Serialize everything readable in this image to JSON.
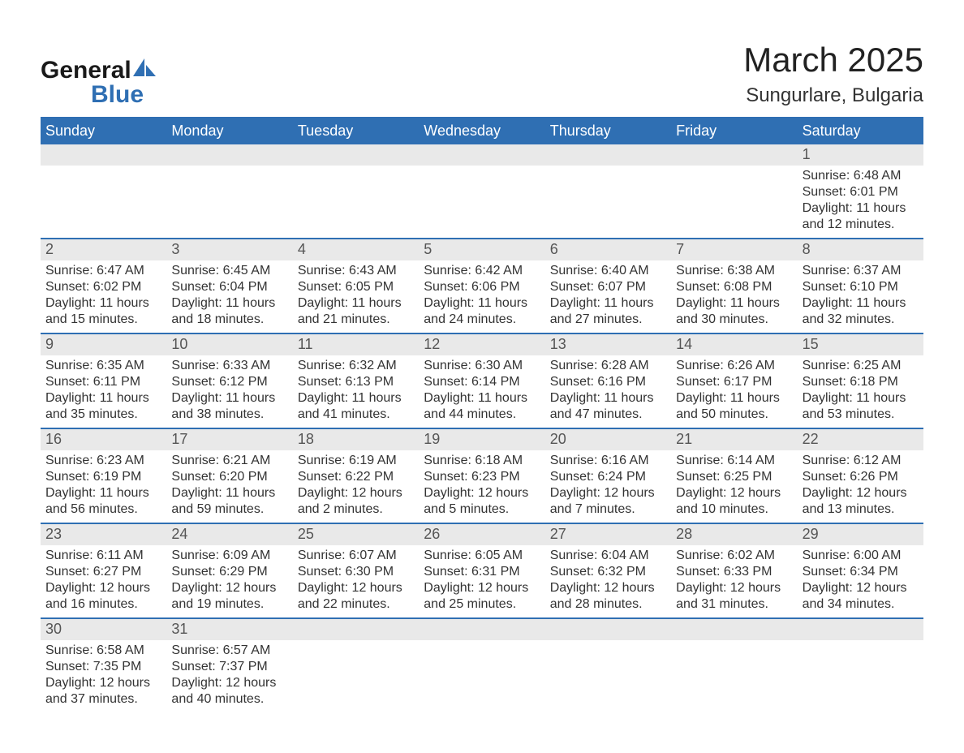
{
  "brand": {
    "word1": "General",
    "word2": "Blue",
    "text_color": "#1a1a1a",
    "blue": "#2f6fb3"
  },
  "title": "March 2025",
  "subtitle": "Sungurlare, Bulgaria",
  "columns": [
    "Sunday",
    "Monday",
    "Tuesday",
    "Wednesday",
    "Thursday",
    "Friday",
    "Saturday"
  ],
  "colors": {
    "header_bg": "#2f6fb3",
    "header_text": "#ffffff",
    "daynum_bg": "#e9e9e9",
    "daynum_text": "#555555",
    "body_text": "#333333",
    "rule": "#2f6fb3",
    "page_bg": "#ffffff"
  },
  "fontsize": {
    "title": 42,
    "subtitle": 24,
    "col_header": 18,
    "daynum": 18,
    "body": 16
  },
  "weeks": [
    [
      null,
      null,
      null,
      null,
      null,
      null,
      {
        "n": "1",
        "sunrise": "6:48 AM",
        "sunset": "6:01 PM",
        "daylight": "11 hours and 12 minutes."
      }
    ],
    [
      {
        "n": "2",
        "sunrise": "6:47 AM",
        "sunset": "6:02 PM",
        "daylight": "11 hours and 15 minutes."
      },
      {
        "n": "3",
        "sunrise": "6:45 AM",
        "sunset": "6:04 PM",
        "daylight": "11 hours and 18 minutes."
      },
      {
        "n": "4",
        "sunrise": "6:43 AM",
        "sunset": "6:05 PM",
        "daylight": "11 hours and 21 minutes."
      },
      {
        "n": "5",
        "sunrise": "6:42 AM",
        "sunset": "6:06 PM",
        "daylight": "11 hours and 24 minutes."
      },
      {
        "n": "6",
        "sunrise": "6:40 AM",
        "sunset": "6:07 PM",
        "daylight": "11 hours and 27 minutes."
      },
      {
        "n": "7",
        "sunrise": "6:38 AM",
        "sunset": "6:08 PM",
        "daylight": "11 hours and 30 minutes."
      },
      {
        "n": "8",
        "sunrise": "6:37 AM",
        "sunset": "6:10 PM",
        "daylight": "11 hours and 32 minutes."
      }
    ],
    [
      {
        "n": "9",
        "sunrise": "6:35 AM",
        "sunset": "6:11 PM",
        "daylight": "11 hours and 35 minutes."
      },
      {
        "n": "10",
        "sunrise": "6:33 AM",
        "sunset": "6:12 PM",
        "daylight": "11 hours and 38 minutes."
      },
      {
        "n": "11",
        "sunrise": "6:32 AM",
        "sunset": "6:13 PM",
        "daylight": "11 hours and 41 minutes."
      },
      {
        "n": "12",
        "sunrise": "6:30 AM",
        "sunset": "6:14 PM",
        "daylight": "11 hours and 44 minutes."
      },
      {
        "n": "13",
        "sunrise": "6:28 AM",
        "sunset": "6:16 PM",
        "daylight": "11 hours and 47 minutes."
      },
      {
        "n": "14",
        "sunrise": "6:26 AM",
        "sunset": "6:17 PM",
        "daylight": "11 hours and 50 minutes."
      },
      {
        "n": "15",
        "sunrise": "6:25 AM",
        "sunset": "6:18 PM",
        "daylight": "11 hours and 53 minutes."
      }
    ],
    [
      {
        "n": "16",
        "sunrise": "6:23 AM",
        "sunset": "6:19 PM",
        "daylight": "11 hours and 56 minutes."
      },
      {
        "n": "17",
        "sunrise": "6:21 AM",
        "sunset": "6:20 PM",
        "daylight": "11 hours and 59 minutes."
      },
      {
        "n": "18",
        "sunrise": "6:19 AM",
        "sunset": "6:22 PM",
        "daylight": "12 hours and 2 minutes."
      },
      {
        "n": "19",
        "sunrise": "6:18 AM",
        "sunset": "6:23 PM",
        "daylight": "12 hours and 5 minutes."
      },
      {
        "n": "20",
        "sunrise": "6:16 AM",
        "sunset": "6:24 PM",
        "daylight": "12 hours and 7 minutes."
      },
      {
        "n": "21",
        "sunrise": "6:14 AM",
        "sunset": "6:25 PM",
        "daylight": "12 hours and 10 minutes."
      },
      {
        "n": "22",
        "sunrise": "6:12 AM",
        "sunset": "6:26 PM",
        "daylight": "12 hours and 13 minutes."
      }
    ],
    [
      {
        "n": "23",
        "sunrise": "6:11 AM",
        "sunset": "6:27 PM",
        "daylight": "12 hours and 16 minutes."
      },
      {
        "n": "24",
        "sunrise": "6:09 AM",
        "sunset": "6:29 PM",
        "daylight": "12 hours and 19 minutes."
      },
      {
        "n": "25",
        "sunrise": "6:07 AM",
        "sunset": "6:30 PM",
        "daylight": "12 hours and 22 minutes."
      },
      {
        "n": "26",
        "sunrise": "6:05 AM",
        "sunset": "6:31 PM",
        "daylight": "12 hours and 25 minutes."
      },
      {
        "n": "27",
        "sunrise": "6:04 AM",
        "sunset": "6:32 PM",
        "daylight": "12 hours and 28 minutes."
      },
      {
        "n": "28",
        "sunrise": "6:02 AM",
        "sunset": "6:33 PM",
        "daylight": "12 hours and 31 minutes."
      },
      {
        "n": "29",
        "sunrise": "6:00 AM",
        "sunset": "6:34 PM",
        "daylight": "12 hours and 34 minutes."
      }
    ],
    [
      {
        "n": "30",
        "sunrise": "6:58 AM",
        "sunset": "7:35 PM",
        "daylight": "12 hours and 37 minutes."
      },
      {
        "n": "31",
        "sunrise": "6:57 AM",
        "sunset": "7:37 PM",
        "daylight": "12 hours and 40 minutes."
      },
      null,
      null,
      null,
      null,
      null
    ]
  ]
}
